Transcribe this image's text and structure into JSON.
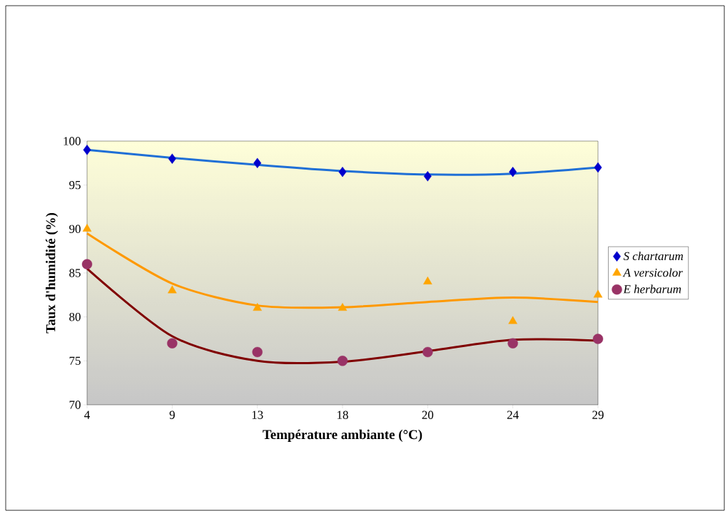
{
  "chart_data": {
    "type": "scatter",
    "xlabel": "Température ambiante (°C)",
    "ylabel": "Taux d'humidité (%)",
    "categories": [
      "4",
      "9",
      "13",
      "18",
      "20",
      "24",
      "29"
    ],
    "ylim": [
      70,
      100
    ],
    "yticks": [
      70,
      75,
      80,
      85,
      90,
      95,
      100
    ],
    "grid": false,
    "legend": "right",
    "series": [
      {
        "type": "line",
        "color": "#1f6fd6",
        "marker": "none",
        "line_style": "solid",
        "values": [
          99,
          98.1,
          97.3,
          96.6,
          96.2,
          96.3,
          97
        ]
      },
      {
        "type": "line",
        "color": "#ff9900",
        "marker": "none",
        "line_style": "solid",
        "values": [
          89.5,
          83.8,
          81.3,
          81.1,
          81.7,
          82.2,
          81.7
        ]
      },
      {
        "type": "line",
        "color": "#800000",
        "marker": "none",
        "line_style": "solid",
        "values": [
          85.5,
          77.8,
          75,
          74.9,
          76.1,
          77.4,
          77.3
        ]
      },
      {
        "name": "S chartarum",
        "color": "#0000cc",
        "marker": "diamond",
        "values": [
          99,
          98,
          97.5,
          96.5,
          96,
          96.5,
          97
        ]
      },
      {
        "name": "A versicolor",
        "color": "#ffa500",
        "marker": "triangle",
        "values": [
          90,
          83,
          81,
          81,
          84,
          79.5,
          82.5
        ]
      },
      {
        "name": "E herbarum",
        "color": "#993366",
        "marker": "circle",
        "values": [
          86,
          77,
          76,
          75,
          76,
          77,
          77.5
        ]
      }
    ]
  }
}
